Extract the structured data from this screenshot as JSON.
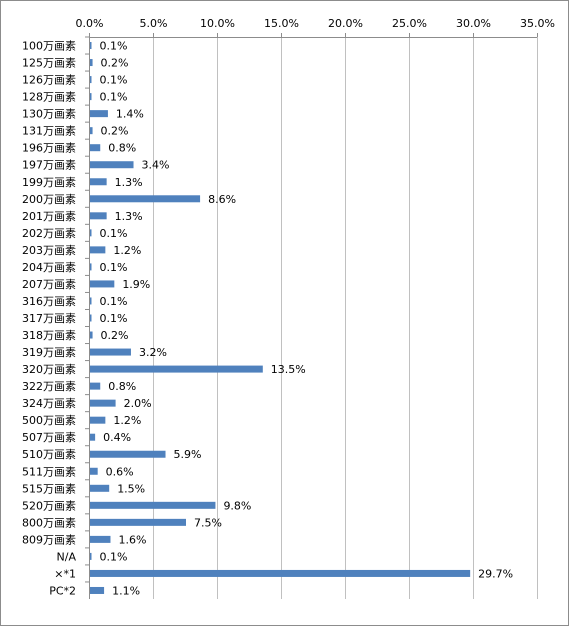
{
  "chart_data": {
    "type": "bar",
    "orientation": "horizontal",
    "categories": [
      "100万画素",
      "125万画素",
      "126万画素",
      "128万画素",
      "130万画素",
      "131万画素",
      "196万画素",
      "197万画素",
      "199万画素",
      "200万画素",
      "201万画素",
      "202万画素",
      "203万画素",
      "204万画素",
      "207万画素",
      "316万画素",
      "317万画素",
      "318万画素",
      "319万画素",
      "320万画素",
      "322万画素",
      "324万画素",
      "500万画素",
      "507万画素",
      "510万画素",
      "511万画素",
      "515万画素",
      "520万画素",
      "800万画素",
      "809万画素",
      "N/A",
      "×*1",
      "PC*2"
    ],
    "values": [
      0.1,
      0.2,
      0.1,
      0.1,
      1.4,
      0.2,
      0.8,
      3.4,
      1.3,
      8.6,
      1.3,
      0.1,
      1.2,
      0.1,
      1.9,
      0.1,
      0.1,
      0.2,
      3.2,
      13.5,
      0.8,
      2.0,
      1.2,
      0.4,
      5.9,
      0.6,
      1.5,
      9.8,
      7.5,
      1.6,
      0.1,
      29.7,
      1.1
    ],
    "value_labels": [
      "0.1%",
      "0.2%",
      "0.1%",
      "0.1%",
      "1.4%",
      "0.2%",
      "0.8%",
      "3.4%",
      "1.3%",
      "8.6%",
      "1.3%",
      "0.1%",
      "1.2%",
      "0.1%",
      "1.9%",
      "0.1%",
      "0.1%",
      "0.2%",
      "3.2%",
      "13.5%",
      "0.8%",
      "2.0%",
      "1.2%",
      "0.4%",
      "5.9%",
      "0.6%",
      "1.5%",
      "9.8%",
      "7.5%",
      "1.6%",
      "0.1%",
      "29.7%",
      "1.1%"
    ],
    "x_ticks": [
      0,
      5,
      10,
      15,
      20,
      25,
      30,
      35
    ],
    "x_tick_labels": [
      "0.0%",
      "5.0%",
      "10.0%",
      "15.0%",
      "20.0%",
      "25.0%",
      "30.0%",
      "35.0%"
    ],
    "xlim": [
      0,
      35
    ],
    "title": "",
    "xlabel": "",
    "ylabel": "",
    "x_axis_position": "top",
    "grid": "vertical",
    "legend": "none",
    "bar_color": "#4f81bd",
    "grid_color": "#c0c0c0"
  }
}
